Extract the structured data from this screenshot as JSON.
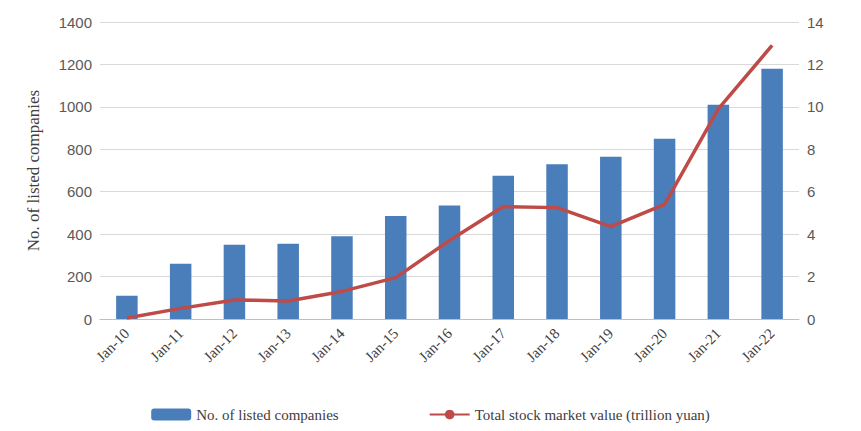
{
  "chart_data": {
    "type": "bar",
    "y_label": "No. of listed companies",
    "categories": [
      "Jan-10",
      "Jan-11",
      "Jan-12",
      "Jan-13",
      "Jan-14",
      "Jan-15",
      "Jan-16",
      "Jan-17",
      "Jan-18",
      "Jan-19",
      "Jan-20",
      "Jan-21",
      "Jan-22"
    ],
    "series": [
      {
        "name": "No. of listed companies",
        "type": "bar",
        "color": "#4a7ebb",
        "values": [
          110,
          260,
          350,
          355,
          390,
          485,
          535,
          675,
          730,
          765,
          850,
          1010,
          1180
        ]
      },
      {
        "name": "Total stock market value (trillion yuan)",
        "type": "line",
        "color": "#be4b48",
        "axis": "y2",
        "values": [
          0.05,
          0.5,
          0.9,
          0.85,
          1.3,
          1.95,
          3.7,
          5.3,
          5.25,
          4.35,
          5.4,
          9.9,
          12.9
        ]
      }
    ],
    "ylim": [
      0,
      1400
    ],
    "yticks": [
      0,
      200,
      400,
      600,
      800,
      1000,
      1200,
      1400
    ],
    "y2lim": [
      0,
      14
    ],
    "y2ticks": [
      0,
      2,
      4,
      6,
      8,
      10,
      12,
      14
    ],
    "grid": true,
    "legend": "bottom"
  }
}
